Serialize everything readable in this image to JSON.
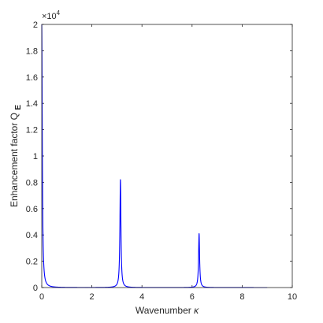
{
  "chart_data": {
    "type": "line",
    "title": "",
    "xlabel": "Wavenumber κ",
    "xlabel_main": "Wavenumber",
    "xlabel_symbol": "κ",
    "ylabel": "Enhancement factor Q E",
    "ylabel_main": "Enhancement factor Q",
    "ylabel_sub": "E",
    "xlim": [
      0,
      10
    ],
    "ylim": [
      0,
      2
    ],
    "xticks": [
      0,
      2,
      4,
      6,
      8,
      10
    ],
    "yticks": [
      0,
      0.2,
      0.4,
      0.6,
      0.8,
      1,
      1.2,
      1.4,
      1.6,
      1.8,
      2
    ],
    "ytick_labels": [
      "0",
      "0.2",
      "0.4",
      "0.6",
      "0.8",
      "1",
      "1.2",
      "1.4",
      "1.6",
      "1.8",
      "2"
    ],
    "y_exponent_base": "×10",
    "y_exponent_power": "4",
    "grid": false,
    "line_color": "#0000ff",
    "series": [
      {
        "x_range": [
          0,
          9
        ],
        "peaks": [
          {
            "x": 0.0,
            "y": 2.0
          },
          {
            "x": 3.14,
            "y": 0.82
          },
          {
            "x": 6.28,
            "y": 0.41
          }
        ]
      }
    ]
  }
}
